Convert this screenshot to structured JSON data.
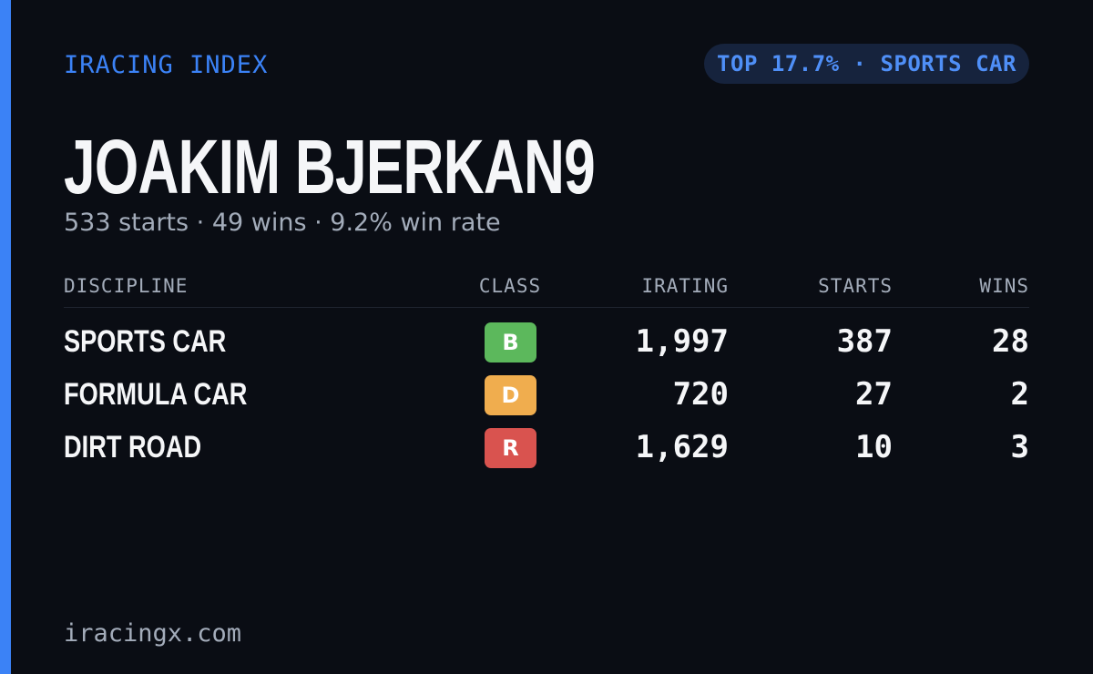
{
  "header": {
    "brand": "IRACING INDEX",
    "badge": "TOP 17.7% · SPORTS CAR"
  },
  "driver": {
    "name": "JOAKIM BJERKAN9",
    "summary": "533 starts · 49 wins · 9.2% win rate"
  },
  "table": {
    "columns": [
      "DISCIPLINE",
      "CLASS",
      "IRATING",
      "STARTS",
      "WINS"
    ],
    "rows": [
      [
        "SPORTS CAR",
        "B",
        "1,997",
        "387",
        "28"
      ],
      [
        "FORMULA CAR",
        "D",
        "720",
        "27",
        "2"
      ],
      [
        "DIRT ROAD",
        "R",
        "1,629",
        "10",
        "3"
      ]
    ]
  },
  "footer": {
    "site": "iracingx.com"
  }
}
